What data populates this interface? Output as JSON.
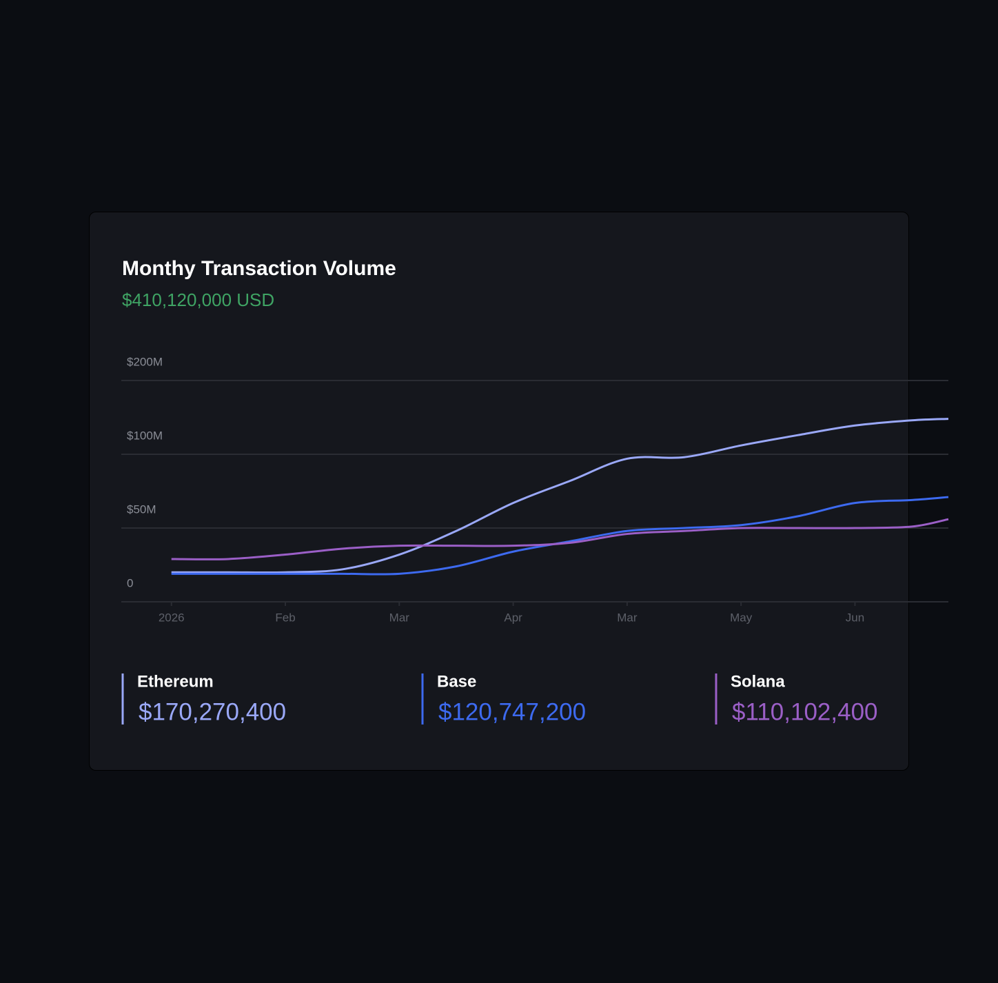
{
  "chart_data": {
    "type": "line",
    "title": "Monthy Transaction Volume",
    "subtitle": "$410,120,000 USD",
    "x": [
      0,
      0.5,
      1,
      1.5,
      2,
      2.5,
      3,
      3.5,
      4,
      4.5,
      5,
      5.5,
      6,
      6.5,
      6.82
    ],
    "xlim": [
      -0.44,
      6.82
    ],
    "xticks": [
      {
        "value": 0,
        "label": "2026"
      },
      {
        "value": 1,
        "label": "Feb"
      },
      {
        "value": 2,
        "label": "Mar"
      },
      {
        "value": 3,
        "label": "Apr"
      },
      {
        "value": 4,
        "label": "Mar"
      },
      {
        "value": 5,
        "label": "May"
      },
      {
        "value": 6,
        "label": "Jun"
      }
    ],
    "ylim": [
      0,
      200
    ],
    "yticks": [
      0,
      {
        "value": 50,
        "label": "$50M"
      },
      {
        "value": 100,
        "label": "$100M"
      },
      {
        "value": 200,
        "label": "$200M"
      }
    ],
    "grid": true,
    "series": [
      {
        "name": "Ethereum",
        "color": "#9aa8f8",
        "total": "$170,270,400",
        "values": [
          20,
          20,
          20,
          22,
          32,
          48,
          67,
          82,
          97,
          98,
          112,
          126,
          139,
          146,
          148
        ]
      },
      {
        "name": "Base",
        "color": "#3d6af0",
        "total": "$120,747,200",
        "values": [
          19,
          19,
          19,
          19,
          19,
          24,
          34,
          41,
          48,
          50,
          52,
          58,
          67,
          69,
          71
        ]
      },
      {
        "name": "Solana",
        "color": "#9b5fc7",
        "total": "$110,102,400",
        "values": [
          29,
          29,
          32,
          36,
          38,
          38,
          38,
          40,
          46,
          48,
          50,
          50,
          50,
          51,
          56
        ]
      }
    ]
  }
}
